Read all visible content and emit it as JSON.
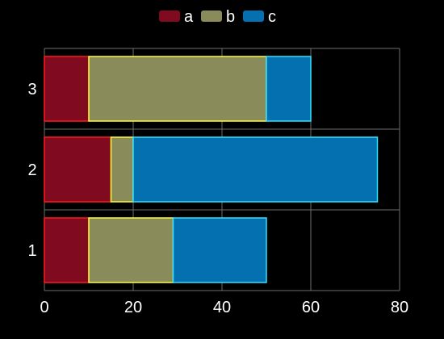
{
  "colors": {
    "background": "#000000",
    "grid": "#6e6e6e",
    "text": "#ffffff"
  },
  "chart_data": {
    "type": "bar",
    "orientation": "horizontal",
    "stacked": true,
    "categories": [
      "1",
      "2",
      "3"
    ],
    "series": [
      {
        "name": "a",
        "values": [
          10,
          15,
          10
        ],
        "fill": "#800a20",
        "stroke": "#ff1a1a"
      },
      {
        "name": "b",
        "values": [
          19,
          5,
          40
        ],
        "fill": "#8a8b5a",
        "stroke": "#ffff33"
      },
      {
        "name": "c",
        "values": [
          21,
          55,
          10
        ],
        "fill": "#0570b0",
        "stroke": "#33e0ff"
      }
    ],
    "x_ticks": [
      "0",
      "20",
      "40",
      "60",
      "80"
    ],
    "xlim": [
      0,
      80
    ],
    "grid": true,
    "legend_position": "top-center"
  }
}
